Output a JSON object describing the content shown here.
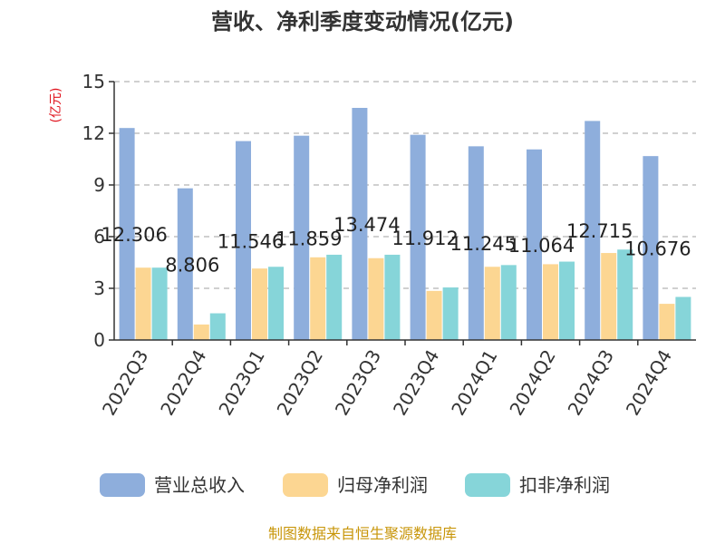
{
  "chart_data": {
    "type": "bar",
    "title": "营收、净利季度变动情况(亿元)",
    "ylabel": "(亿元)",
    "ylim": [
      0,
      15
    ],
    "yticks": [
      0,
      3,
      6,
      9,
      12,
      15
    ],
    "grid": true,
    "legend_position": "bottom",
    "categories": [
      "2022Q3",
      "2022Q4",
      "2023Q1",
      "2023Q2",
      "2023Q3",
      "2023Q4",
      "2024Q1",
      "2024Q2",
      "2024Q3",
      "2024Q4"
    ],
    "series": [
      {
        "name": "营业总收入",
        "color": "#8eaedc",
        "values": [
          12.306,
          8.806,
          11.546,
          11.859,
          13.474,
          11.912,
          11.245,
          11.064,
          12.715,
          10.676
        ],
        "labels": [
          "12.306",
          "8.806",
          "11.546",
          "11.859",
          "13.474",
          "11.912",
          "11.245",
          "11.064",
          "12.715",
          "10.676"
        ]
      },
      {
        "name": "归母净利润",
        "color": "#fcd692",
        "values": [
          4.2,
          0.9,
          4.15,
          4.8,
          4.75,
          2.85,
          4.25,
          4.4,
          5.05,
          2.1
        ]
      },
      {
        "name": "扣非净利润",
        "color": "#86d5d9",
        "values": [
          4.2,
          1.55,
          4.25,
          4.95,
          4.95,
          3.05,
          4.35,
          4.55,
          5.25,
          2.5
        ]
      }
    ]
  },
  "source_text": "制图数据来自恒生聚源数据库",
  "colors": {
    "title": "#333333",
    "ylabel": "#e0141e",
    "source": "#c8960a",
    "grid": "#b4b4b4",
    "axis": "#333333"
  }
}
